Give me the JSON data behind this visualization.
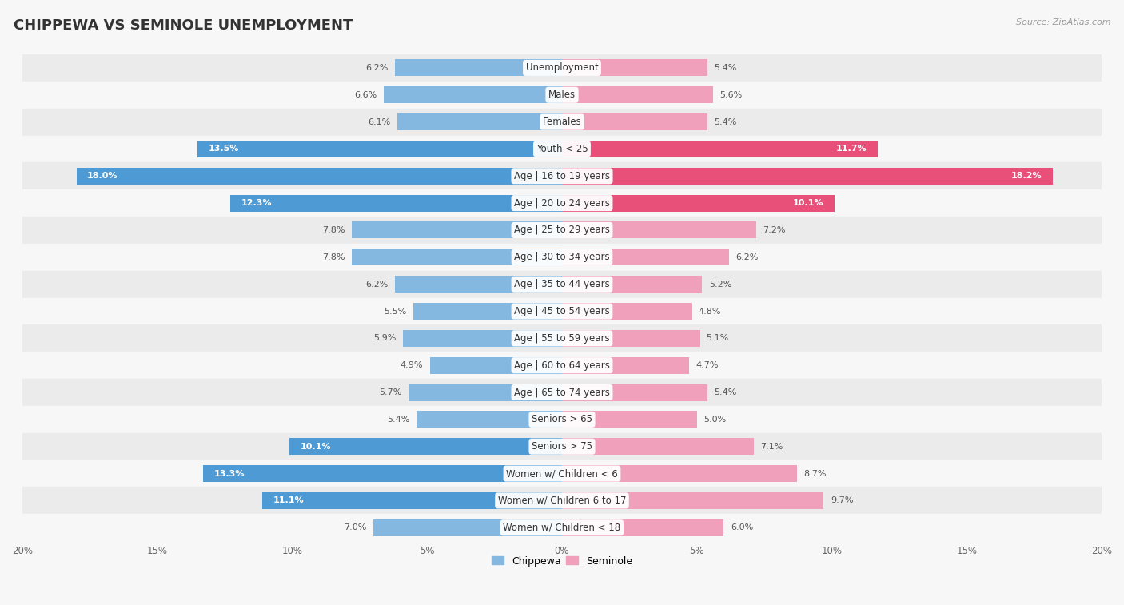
{
  "title": "CHIPPEWA VS SEMINOLE UNEMPLOYMENT",
  "source": "Source: ZipAtlas.com",
  "categories": [
    "Unemployment",
    "Males",
    "Females",
    "Youth < 25",
    "Age | 16 to 19 years",
    "Age | 20 to 24 years",
    "Age | 25 to 29 years",
    "Age | 30 to 34 years",
    "Age | 35 to 44 years",
    "Age | 45 to 54 years",
    "Age | 55 to 59 years",
    "Age | 60 to 64 years",
    "Age | 65 to 74 years",
    "Seniors > 65",
    "Seniors > 75",
    "Women w/ Children < 6",
    "Women w/ Children 6 to 17",
    "Women w/ Children < 18"
  ],
  "chippewa": [
    6.2,
    6.6,
    6.1,
    13.5,
    18.0,
    12.3,
    7.8,
    7.8,
    6.2,
    5.5,
    5.9,
    4.9,
    5.7,
    5.4,
    10.1,
    13.3,
    11.1,
    7.0
  ],
  "seminole": [
    5.4,
    5.6,
    5.4,
    11.7,
    18.2,
    10.1,
    7.2,
    6.2,
    5.2,
    4.8,
    5.1,
    4.7,
    5.4,
    5.0,
    7.1,
    8.7,
    9.7,
    6.0
  ],
  "chippewa_color": "#85b8e0",
  "seminole_color": "#f0a0bb",
  "chippewa_highlight_color": "#4d9ad4",
  "seminole_highlight_color": "#e8507a",
  "highlight_threshold": 10.0,
  "axis_limit": 20.0,
  "bg_color": "#f7f7f7",
  "row_color_dark": "#ebebeb",
  "row_color_light": "#f7f7f7",
  "title_fontsize": 13,
  "label_fontsize": 8.5,
  "value_fontsize": 8.0
}
